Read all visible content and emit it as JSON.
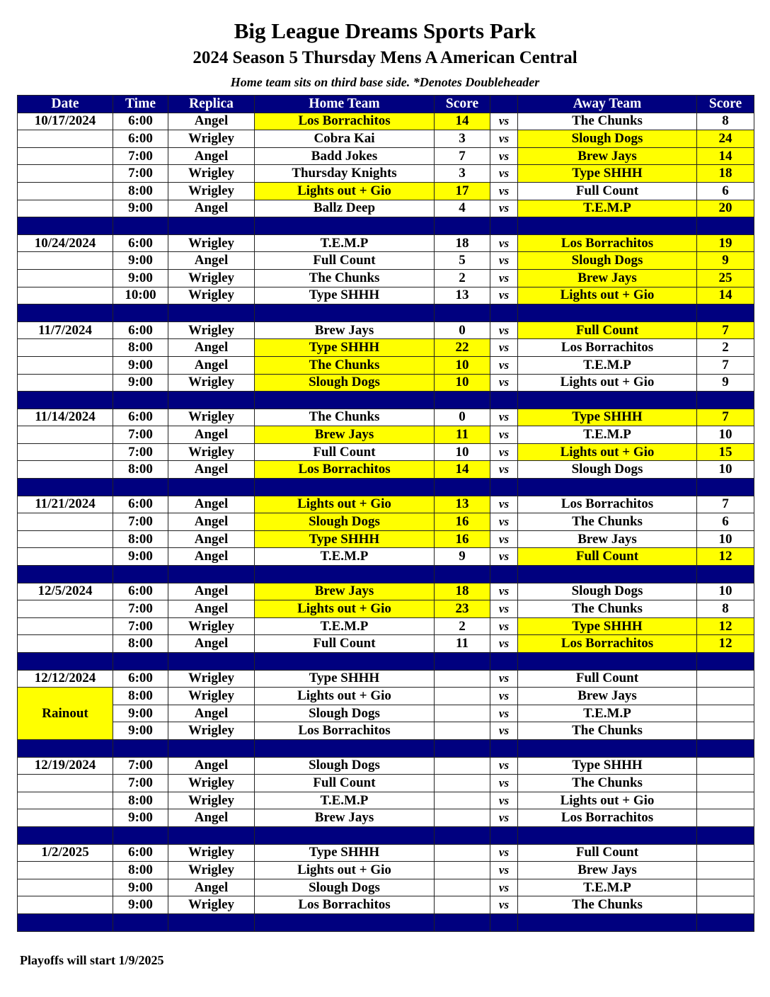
{
  "header": {
    "title": "Big League Dreams Sports Park",
    "subtitle": "2024 Season 5 Thursday Mens A American Central",
    "note": "Home team sits on third base side.  *Denotes Doubleheader"
  },
  "columns": [
    "Date",
    "Time",
    "Replica",
    "Home Team",
    "Score",
    "",
    "Away Team",
    "Score"
  ],
  "vs_label": "vs",
  "colors": {
    "header_bg": "#00007f",
    "winner_highlight": "#ffff00"
  },
  "groups": [
    {
      "date": "10/17/2024",
      "games": [
        {
          "time": "6:00",
          "replica": "Angel",
          "home": "Los Borrachitos",
          "home_score": "14",
          "away": "The Chunks",
          "away_score": "8",
          "winner": "home"
        },
        {
          "time": "6:00",
          "replica": "Wrigley",
          "home": "Cobra Kai",
          "home_score": "3",
          "away": "Slough Dogs",
          "away_score": "24",
          "winner": "away"
        },
        {
          "time": "7:00",
          "replica": "Angel",
          "home": "Badd Jokes",
          "home_score": "7",
          "away": "Brew Jays",
          "away_score": "14",
          "winner": "away"
        },
        {
          "time": "7:00",
          "replica": "Wrigley",
          "home": "Thursday Knights",
          "home_score": "3",
          "away": "Type SHHH",
          "away_score": "18",
          "winner": "away"
        },
        {
          "time": "8:00",
          "replica": "Wrigley",
          "home": "Lights out + Gio",
          "home_score": "17",
          "away": "Full Count",
          "away_score": "6",
          "winner": "home"
        },
        {
          "time": "9:00",
          "replica": "Angel",
          "home": "Ballz Deep",
          "home_score": "4",
          "away": "T.E.M.P",
          "away_score": "20",
          "winner": "away"
        }
      ]
    },
    {
      "date": "10/24/2024",
      "games": [
        {
          "time": "6:00",
          "replica": "Wrigley",
          "home": "T.E.M.P",
          "home_score": "18",
          "away": "Los Borrachitos",
          "away_score": "19",
          "winner": "away"
        },
        {
          "time": "9:00",
          "replica": "Angel",
          "home": "Full Count",
          "home_score": "5",
          "away": "Slough Dogs",
          "away_score": "9",
          "winner": "away"
        },
        {
          "time": "9:00",
          "replica": "Wrigley",
          "home": "The Chunks",
          "home_score": "2",
          "away": "Brew Jays",
          "away_score": "25",
          "winner": "away"
        },
        {
          "time": "10:00",
          "replica": "Wrigley",
          "home": "Type SHHH",
          "home_score": "13",
          "away": "Lights out + Gio",
          "away_score": "14",
          "winner": "away"
        }
      ]
    },
    {
      "date": "11/7/2024",
      "games": [
        {
          "time": "6:00",
          "replica": "Wrigley",
          "home": "Brew Jays",
          "home_score": "0",
          "away": "Full Count",
          "away_score": "7",
          "winner": "away"
        },
        {
          "time": "8:00",
          "replica": "Angel",
          "home": "Type SHHH",
          "home_score": "22",
          "away": "Los Borrachitos",
          "away_score": "2",
          "winner": "home"
        },
        {
          "time": "9:00",
          "replica": "Angel",
          "home": "The Chunks",
          "home_score": "10",
          "away": "T.E.M.P",
          "away_score": "7",
          "winner": "home"
        },
        {
          "time": "9:00",
          "replica": "Wrigley",
          "home": "Slough Dogs",
          "home_score": "10",
          "away": "Lights out + Gio",
          "away_score": "9",
          "winner": "home"
        }
      ]
    },
    {
      "date": "11/14/2024",
      "games": [
        {
          "time": "6:00",
          "replica": "Wrigley",
          "home": "The Chunks",
          "home_score": "0",
          "away": "Type SHHH",
          "away_score": "7",
          "winner": "away"
        },
        {
          "time": "7:00",
          "replica": "Angel",
          "home": "Brew Jays",
          "home_score": "11",
          "away": "T.E.M.P",
          "away_score": "10",
          "winner": "home"
        },
        {
          "time": "7:00",
          "replica": "Wrigley",
          "home": "Full Count",
          "home_score": "10",
          "away": "Lights out + Gio",
          "away_score": "15",
          "winner": "away"
        },
        {
          "time": "8:00",
          "replica": "Angel",
          "home": "Los Borrachitos",
          "home_score": "14",
          "away": "Slough Dogs",
          "away_score": "10",
          "winner": "home"
        }
      ]
    },
    {
      "date": "11/21/2024",
      "games": [
        {
          "time": "6:00",
          "replica": "Angel",
          "home": "Lights out + Gio",
          "home_score": "13",
          "away": "Los Borrachitos",
          "away_score": "7",
          "winner": "home"
        },
        {
          "time": "7:00",
          "replica": "Angel",
          "home": "Slough Dogs",
          "home_score": "16",
          "away": "The Chunks",
          "away_score": "6",
          "winner": "home"
        },
        {
          "time": "8:00",
          "replica": "Angel",
          "home": "Type SHHH",
          "home_score": "16",
          "away": "Brew Jays",
          "away_score": "10",
          "winner": "home"
        },
        {
          "time": "9:00",
          "replica": "Angel",
          "home": "T.E.M.P",
          "home_score": "9",
          "away": "Full Count",
          "away_score": "12",
          "winner": "away"
        }
      ]
    },
    {
      "date": "12/5/2024",
      "games": [
        {
          "time": "6:00",
          "replica": "Angel",
          "home": "Brew Jays",
          "home_score": "18",
          "away": "Slough Dogs",
          "away_score": "10",
          "winner": "home"
        },
        {
          "time": "7:00",
          "replica": "Angel",
          "home": "Lights out + Gio",
          "home_score": "23",
          "away": "The Chunks",
          "away_score": "8",
          "winner": "home"
        },
        {
          "time": "7:00",
          "replica": "Wrigley",
          "home": "T.E.M.P",
          "home_score": "2",
          "away": "Type SHHH",
          "away_score": "12",
          "winner": "away"
        },
        {
          "time": "8:00",
          "replica": "Angel",
          "home": "Full Count",
          "home_score": "11",
          "away": "Los Borrachitos",
          "away_score": "12",
          "winner": "away"
        }
      ]
    },
    {
      "date": "12/12/2024",
      "date_note": "Rainout",
      "games": [
        {
          "time": "6:00",
          "replica": "Wrigley",
          "home": "Type SHHH",
          "home_score": "",
          "away": "Full Count",
          "away_score": "",
          "winner": ""
        },
        {
          "time": "8:00",
          "replica": "Wrigley",
          "home": "Lights out + Gio",
          "home_score": "",
          "away": "Brew Jays",
          "away_score": "",
          "winner": ""
        },
        {
          "time": "9:00",
          "replica": "Angel",
          "home": "Slough Dogs",
          "home_score": "",
          "away": "T.E.M.P",
          "away_score": "",
          "winner": ""
        },
        {
          "time": "9:00",
          "replica": "Wrigley",
          "home": "Los Borrachitos",
          "home_score": "",
          "away": "The Chunks",
          "away_score": "",
          "winner": ""
        }
      ]
    },
    {
      "date": "12/19/2024",
      "games": [
        {
          "time": "7:00",
          "replica": "Angel",
          "home": "Slough Dogs",
          "home_score": "",
          "away": "Type SHHH",
          "away_score": "",
          "winner": ""
        },
        {
          "time": "7:00",
          "replica": "Wrigley",
          "home": "Full Count",
          "home_score": "",
          "away": "The Chunks",
          "away_score": "",
          "winner": ""
        },
        {
          "time": "8:00",
          "replica": "Wrigley",
          "home": "T.E.M.P",
          "home_score": "",
          "away": "Lights out + Gio",
          "away_score": "",
          "winner": ""
        },
        {
          "time": "9:00",
          "replica": "Angel",
          "home": "Brew Jays",
          "home_score": "",
          "away": "Los Borrachitos",
          "away_score": "",
          "winner": ""
        }
      ]
    },
    {
      "date": "1/2/2025",
      "games": [
        {
          "time": "6:00",
          "replica": "Wrigley",
          "home": "Type SHHH",
          "home_score": "",
          "away": "Full Count",
          "away_score": "",
          "winner": ""
        },
        {
          "time": "8:00",
          "replica": "Wrigley",
          "home": "Lights out + Gio",
          "home_score": "",
          "away": "Brew Jays",
          "away_score": "",
          "winner": ""
        },
        {
          "time": "9:00",
          "replica": "Angel",
          "home": "Slough Dogs",
          "home_score": "",
          "away": "T.E.M.P",
          "away_score": "",
          "winner": ""
        },
        {
          "time": "9:00",
          "replica": "Wrigley",
          "home": "Los Borrachitos",
          "home_score": "",
          "away": "The Chunks",
          "away_score": "",
          "winner": ""
        }
      ]
    }
  ],
  "footer": "Playoffs will start 1/9/2025"
}
